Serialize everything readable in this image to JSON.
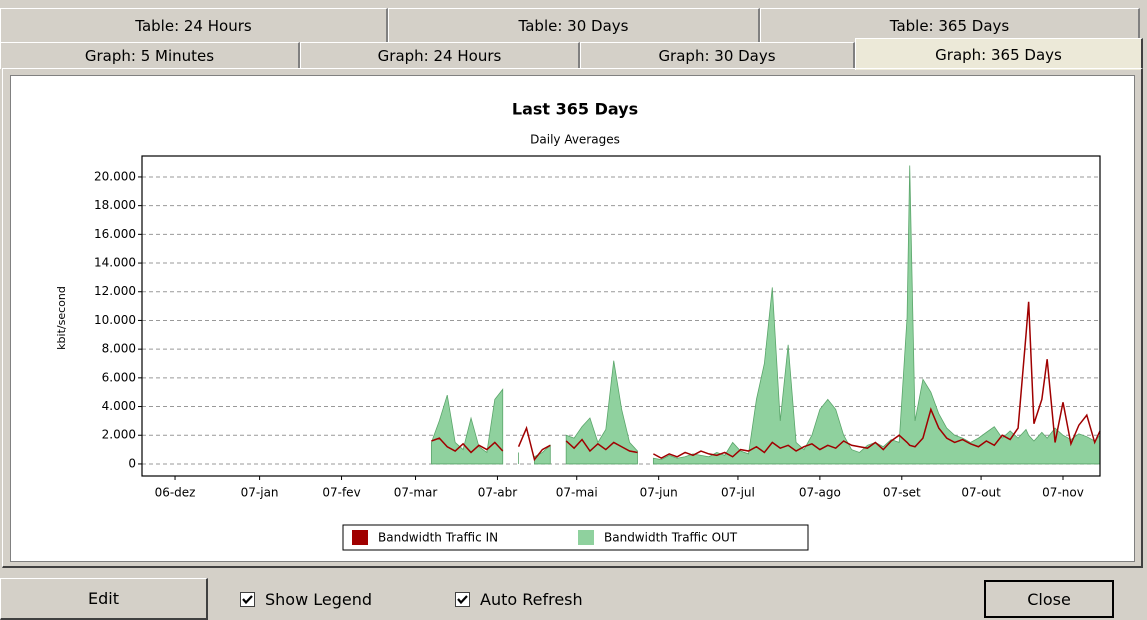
{
  "tabs_row1": [
    "Table: 24 Hours",
    "Table: 30 Days",
    "Table: 365 Days"
  ],
  "tabs_row2": [
    "Graph: 5 Minutes",
    "Graph: 24 Hours",
    "Graph: 30 Days",
    "Graph: 365 Days"
  ],
  "chart_data": {
    "type": "line",
    "title": "Last 365 Days",
    "subtitle": "Daily Averages",
    "y_label": "kbit/second",
    "xlim": [
      -12.5,
      350
    ],
    "ylim": [
      -840,
      21460
    ],
    "grid": true,
    "yticks": [
      0,
      {
        "value": 2000,
        "label": "2.000"
      },
      {
        "value": 4000,
        "label": "4.000"
      },
      {
        "value": 6000,
        "label": "6.000"
      },
      {
        "value": 8000,
        "label": "8.000"
      },
      {
        "value": 10000,
        "label": "10.000"
      },
      {
        "value": 12000,
        "label": "12.000"
      },
      {
        "value": 14000,
        "label": "14.000"
      },
      {
        "value": 16000,
        "label": "16.000"
      },
      {
        "value": 18000,
        "label": "18.000"
      },
      {
        "value": 20000,
        "label": "20.000"
      }
    ],
    "xticks": [
      {
        "value": 0,
        "label": "06-dez"
      },
      {
        "value": 32,
        "label": "07-jan"
      },
      {
        "value": 63,
        "label": "07-fev"
      },
      {
        "value": 91,
        "label": "07-mar"
      },
      {
        "value": 122,
        "label": "07-abr"
      },
      {
        "value": 152,
        "label": "07-mai"
      },
      {
        "value": 183,
        "label": "07-jun"
      },
      {
        "value": 213,
        "label": "07-jul"
      },
      {
        "value": 244,
        "label": "07-ago"
      },
      {
        "value": 275,
        "label": "07-set"
      },
      {
        "value": 305,
        "label": "07-out"
      },
      {
        "value": 336,
        "label": "07-nov"
      }
    ],
    "x": [
      97,
      100,
      103,
      106,
      109,
      112,
      115,
      118,
      121,
      124,
      127,
      130,
      133,
      136,
      139,
      142,
      145,
      148,
      151,
      154,
      157,
      160,
      163,
      166,
      169,
      172,
      175,
      178,
      181,
      184,
      187,
      190,
      193,
      196,
      199,
      202,
      205,
      208,
      211,
      214,
      217,
      220,
      223,
      226,
      229,
      232,
      235,
      238,
      241,
      244,
      247,
      250,
      253,
      256,
      259,
      262,
      265,
      268,
      271,
      274,
      277,
      278,
      280,
      283,
      286,
      289,
      292,
      295,
      298,
      301,
      304,
      307,
      310,
      313,
      316,
      319,
      322,
      323,
      325,
      328,
      330,
      333,
      336,
      339,
      342,
      345,
      348,
      350
    ],
    "series": [
      {
        "name": "Bandwidth Traffic IN",
        "color": "#a00000",
        "type": "line",
        "values": [
          1600,
          1800,
          1200,
          900,
          1400,
          800,
          1300,
          1000,
          1500,
          900,
          null,
          1200,
          2500,
          300,
          1000,
          1300,
          null,
          1600,
          1100,
          1700,
          900,
          1400,
          1000,
          1500,
          1200,
          900,
          800,
          null,
          700,
          400,
          700,
          500,
          800,
          600,
          900,
          700,
          600,
          800,
          500,
          1000,
          900,
          1200,
          800,
          1500,
          1100,
          1300,
          900,
          1200,
          1400,
          1000,
          1300,
          1100,
          1600,
          1300,
          1200,
          1100,
          1500,
          1000,
          1600,
          2000,
          1500,
          1300,
          1200,
          1800,
          3800,
          2500,
          1800,
          1500,
          1700,
          1400,
          1200,
          1600,
          1300,
          2000,
          1700,
          2500,
          9000,
          11300,
          2800,
          4500,
          7300,
          1500,
          4300,
          1400,
          2700,
          3400,
          1500,
          2300
        ]
      },
      {
        "name": "Bandwidth Traffic OUT",
        "color": "#8fd19e",
        "type": "area",
        "values": [
          1500,
          3000,
          4800,
          1500,
          1000,
          3200,
          1200,
          800,
          4500,
          5200,
          null,
          800,
          null,
          500,
          800,
          1300,
          null,
          2000,
          1800,
          2600,
          3200,
          1500,
          2400,
          7200,
          3800,
          1500,
          900,
          null,
          400,
          300,
          600,
          400,
          500,
          700,
          600,
          500,
          800,
          600,
          1500,
          900,
          700,
          4500,
          7000,
          12300,
          3000,
          8300,
          1500,
          1000,
          2000,
          3800,
          4500,
          3800,
          2000,
          1000,
          800,
          1300,
          1500,
          1200,
          1700,
          1500,
          10200,
          20800,
          3000,
          5900,
          5000,
          3500,
          2500,
          2000,
          1800,
          1500,
          1800,
          2200,
          2600,
          1800,
          2300,
          1800,
          2400,
          2000,
          1600,
          2200,
          1800,
          2500,
          2000,
          1700,
          2100,
          1900,
          1600,
          2000
        ]
      }
    ]
  },
  "controls": {
    "edit": "Edit",
    "show_legend": {
      "label": "Show Legend",
      "checked": true
    },
    "auto_refresh": {
      "label": "Auto Refresh",
      "checked": true
    },
    "close": "Close"
  }
}
